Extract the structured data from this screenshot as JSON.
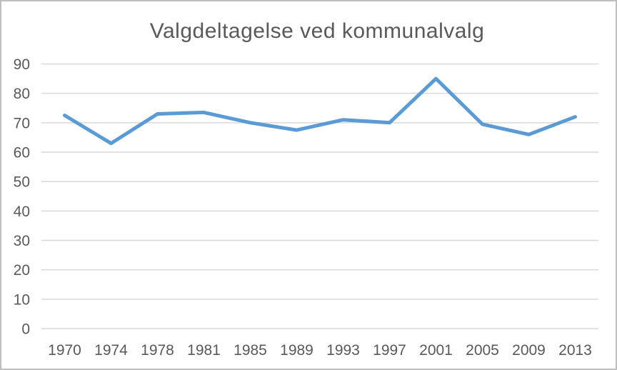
{
  "chart_data": {
    "type": "line",
    "title": "Valgdeltagelse ved kommunalvalg",
    "categories": [
      "1970",
      "1974",
      "1978",
      "1981",
      "1985",
      "1989",
      "1993",
      "1997",
      "2001",
      "2005",
      "2009",
      "2013"
    ],
    "values": [
      72.5,
      63,
      73,
      73.5,
      70,
      67.5,
      71,
      70,
      85,
      69.5,
      66,
      72
    ],
    "xlabel": "",
    "ylabel": "",
    "ylim": [
      0,
      90
    ],
    "y_ticks": [
      90,
      80,
      70,
      60,
      50,
      40,
      30,
      20,
      10,
      0
    ],
    "grid": true,
    "legend": "none",
    "colors": {
      "line": "#5B9BD5",
      "gridline": "#D9D9D9",
      "text": "#595959",
      "border": "#BFBFBF",
      "background": "#FFFFFF"
    }
  }
}
